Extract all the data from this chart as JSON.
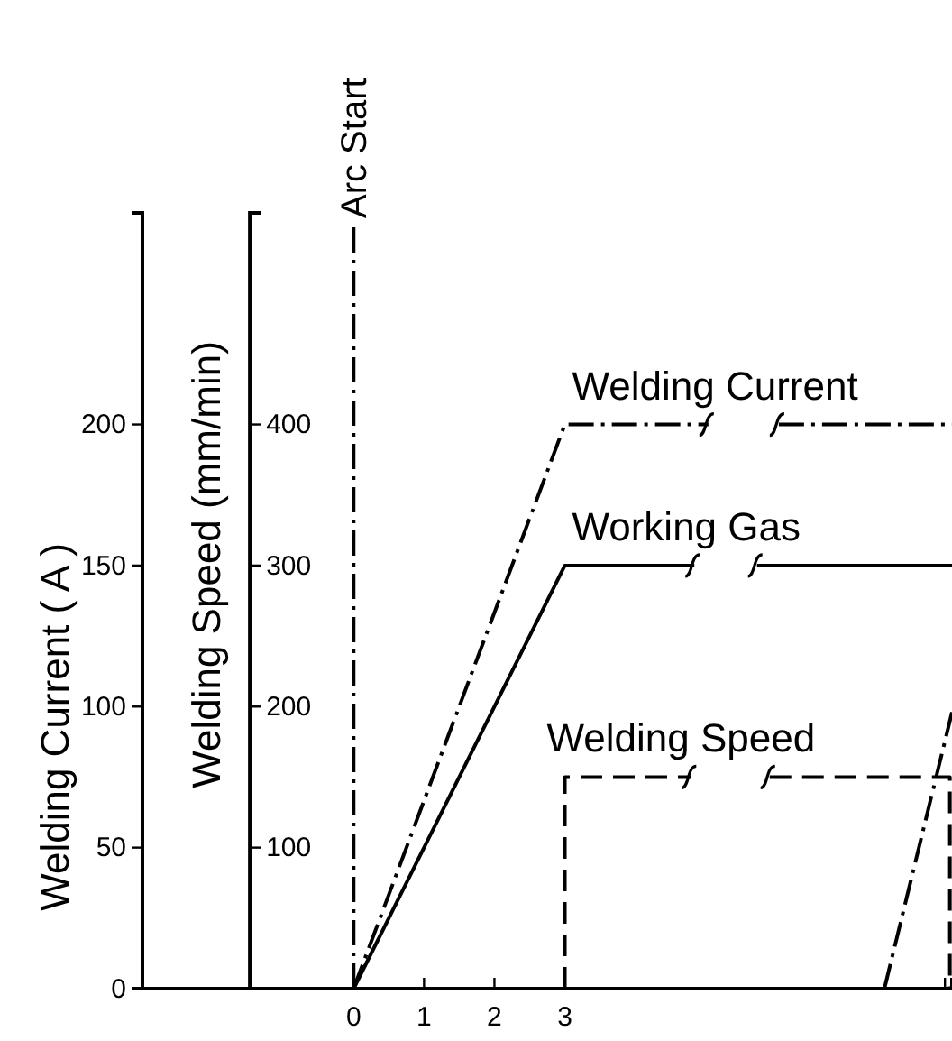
{
  "chart_data": {
    "type": "line",
    "ylabel": "Welding Current ( A )",
    "y2label": "Welding Speed (mm/min)",
    "xlim": [
      -3,
      8.5
    ],
    "xticks": [
      0,
      1,
      2,
      3,
      {
        "value": 8.4,
        "label": null
      }
    ],
    "ylim": [
      0,
      275
    ],
    "yticks": [
      0,
      50,
      100,
      150,
      200
    ],
    "y2lim": [
      0,
      550
    ],
    "y2ticks": [
      100,
      200,
      300,
      400
    ],
    "ref_lines": [
      {
        "axis": "x",
        "value": 0,
        "label": "Arc Start",
        "line_style": "dashdot"
      }
    ],
    "series": [
      {
        "name": "Welding Current",
        "color": "#000000",
        "line_style": "dashdot",
        "x": [
          0,
          3,
          5.04,
          5.5,
          6.04,
          8.5
        ],
        "values": [
          0,
          200,
          200,
          null,
          200,
          200
        ]
      },
      {
        "name": "Working Gas",
        "color": "#000000",
        "line_style": "solid",
        "x": [
          0,
          3,
          4.84,
          5.3,
          5.73,
          8.5
        ],
        "values": [
          0,
          150,
          150,
          null,
          150,
          150
        ]
      },
      {
        "name": "Welding Speed",
        "color": "#000000",
        "line_style": "dashed",
        "axis": "y2",
        "x": [
          3,
          3,
          4.79,
          5.35,
          5.91,
          8.47,
          8.47
        ],
        "values": [
          0,
          150,
          150,
          null,
          150,
          150,
          0
        ]
      },
      {
        "color": "#000000",
        "line_style": "dashdot",
        "x": [
          7.54,
          8.5
        ],
        "values": [
          0,
          98
        ]
      }
    ],
    "grid": false,
    "legend": false,
    "marker": "none"
  }
}
